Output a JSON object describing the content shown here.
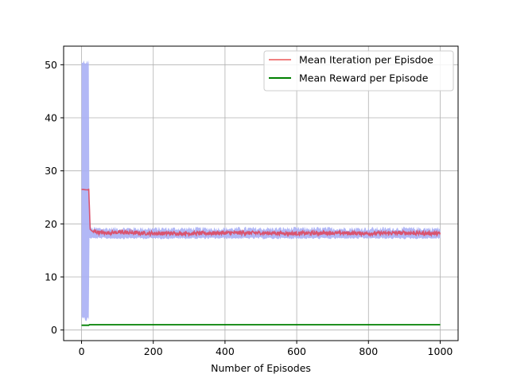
{
  "chart_data": {
    "type": "line",
    "title": "",
    "xlabel": "Number of Episodes",
    "ylabel": "",
    "xlim": [
      -50,
      1050
    ],
    "ylim": [
      -2,
      53.5
    ],
    "xticks": [
      0,
      200,
      400,
      600,
      800,
      1000
    ],
    "yticks": [
      0,
      10,
      20,
      30,
      40,
      50
    ],
    "grid": true,
    "legend_position": "top-right",
    "band": {
      "color": "#aab0f5",
      "switch_episode": 20,
      "early": {
        "min": 1.5,
        "max": 51
      },
      "late": {
        "min": 17.5,
        "max": 19
      }
    },
    "series": [
      {
        "name": "Mean Iteration per Episdoe",
        "color": "#d9536e",
        "legend_color": "#f08080",
        "points": [
          [
            0,
            26.5
          ],
          [
            19,
            26.4
          ],
          [
            20,
            26.6
          ],
          [
            24,
            19.0
          ],
          [
            30,
            18.6
          ],
          [
            60,
            18.3
          ],
          [
            100,
            18.4
          ],
          [
            200,
            18.2
          ],
          [
            300,
            18.2
          ],
          [
            400,
            18.3
          ],
          [
            500,
            18.3
          ],
          [
            600,
            18.2
          ],
          [
            700,
            18.3
          ],
          [
            800,
            18.2
          ],
          [
            900,
            18.3
          ],
          [
            1000,
            18.2
          ]
        ],
        "noise_amplitude": 0.35
      },
      {
        "name": "Mean Reward per Episode",
        "color": "#008000",
        "legend_color": "#008000",
        "points": [
          [
            0,
            0.9
          ],
          [
            20,
            0.9
          ],
          [
            22,
            1.0
          ],
          [
            1000,
            1.0
          ]
        ],
        "noise_amplitude": 0
      }
    ]
  }
}
